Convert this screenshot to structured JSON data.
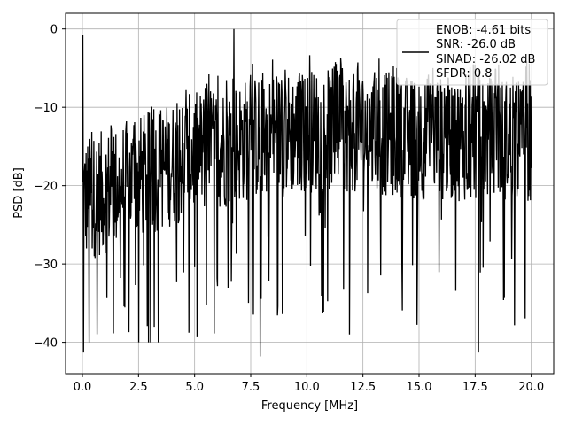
{
  "chart_data": {
    "type": "line",
    "title": "",
    "xlabel": "Frequency [MHz]",
    "ylabel": "PSD [dB]",
    "xlim": [
      -0.75,
      21.0
    ],
    "ylim": [
      -44,
      2
    ],
    "xticks": [
      0.0,
      2.5,
      5.0,
      7.5,
      10.0,
      12.5,
      15.0,
      17.5,
      20.0
    ],
    "xtick_labels": [
      "0.0",
      "2.5",
      "5.0",
      "7.5",
      "10.0",
      "12.5",
      "15.0",
      "17.5",
      "20.0"
    ],
    "yticks": [
      0,
      -10,
      -20,
      -30,
      -40
    ],
    "ytick_labels": [
      "0",
      "−10",
      "−20",
      "−30",
      "−40"
    ],
    "grid": true,
    "legend_position": "top-right",
    "series": [
      {
        "color": "#000000",
        "x_start": 0.0,
        "x_end": 20.0,
        "noise_floor_trend": [
          [
            0.0,
            -22
          ],
          [
            2.5,
            -19
          ],
          [
            5.0,
            -16
          ],
          [
            7.5,
            -14
          ],
          [
            10.0,
            -13
          ],
          [
            12.5,
            -13
          ],
          [
            15.0,
            -14
          ],
          [
            17.5,
            -14
          ],
          [
            20.0,
            -14
          ]
        ],
        "peaks": [
          [
            0.02,
            -0.8
          ],
          [
            0.05,
            -41.3
          ],
          [
            6.75,
            0.0
          ],
          [
            7.92,
            -41.8
          ],
          [
            17.65,
            -41.3
          ],
          [
            0.3,
            -40.0
          ],
          [
            11.9,
            -39.0
          ]
        ]
      }
    ],
    "legend": {
      "lines": [
        "ENOB: -4.61 bits",
        "SNR: -26.0 dB",
        "SINAD: -26.02 dB",
        "SFDR: 0.8"
      ]
    }
  },
  "colors": {
    "line": "#000000",
    "grid": "#b0b0b0",
    "background": "#ffffff"
  }
}
